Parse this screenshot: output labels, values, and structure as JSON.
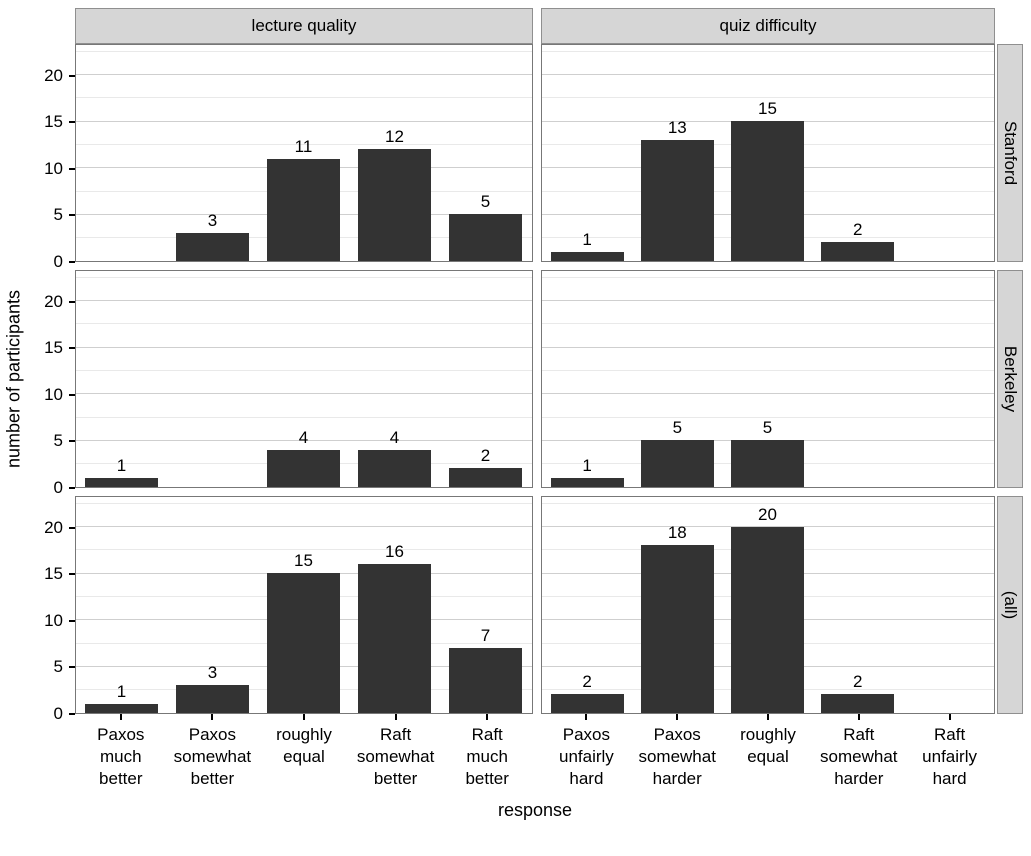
{
  "chart_data": {
    "type": "bar",
    "title": "",
    "xlabel": "response",
    "ylabel": "number of participants",
    "ylim": [
      0,
      23.4
    ],
    "yticks": [
      0,
      5,
      10,
      15,
      20
    ],
    "grid": true,
    "legend": "none",
    "col_facets": [
      {
        "label": "lecture quality",
        "categories": [
          [
            "Paxos",
            "much",
            "better"
          ],
          [
            "Paxos",
            "somewhat",
            "better"
          ],
          [
            "roughly",
            "equal"
          ],
          [
            "Raft",
            "somewhat",
            "better"
          ],
          [
            "Raft",
            "much",
            "better"
          ]
        ]
      },
      {
        "label": "quiz difficulty",
        "categories": [
          [
            "Paxos",
            "unfairly",
            "hard"
          ],
          [
            "Paxos",
            "somewhat",
            "harder"
          ],
          [
            "roughly",
            "equal"
          ],
          [
            "Raft",
            "somewhat",
            "harder"
          ],
          [
            "Raft",
            "unfairly",
            "hard"
          ]
        ]
      }
    ],
    "row_facets": [
      "Stanford",
      "Berkeley",
      "(all)"
    ],
    "series": [
      {
        "row": "Stanford",
        "col": "lecture quality",
        "values": [
          0,
          3,
          11,
          12,
          5
        ]
      },
      {
        "row": "Stanford",
        "col": "quiz difficulty",
        "values": [
          1,
          13,
          15,
          2,
          0
        ]
      },
      {
        "row": "Berkeley",
        "col": "lecture quality",
        "values": [
          1,
          0,
          4,
          4,
          2
        ]
      },
      {
        "row": "Berkeley",
        "col": "quiz difficulty",
        "values": [
          1,
          5,
          5,
          0,
          0
        ]
      },
      {
        "row": "(all)",
        "col": "lecture quality",
        "values": [
          1,
          3,
          15,
          16,
          7
        ]
      },
      {
        "row": "(all)",
        "col": "quiz difficulty",
        "values": [
          2,
          18,
          20,
          2,
          0
        ]
      }
    ],
    "colors": {
      "bar": "#333333",
      "strip_bg": "#d6d6d6",
      "strip_border": "#8f8f8f",
      "panel_border": "#777777",
      "grid_major": "#cfcfcf",
      "grid_minor": "#e9e9e9"
    }
  }
}
